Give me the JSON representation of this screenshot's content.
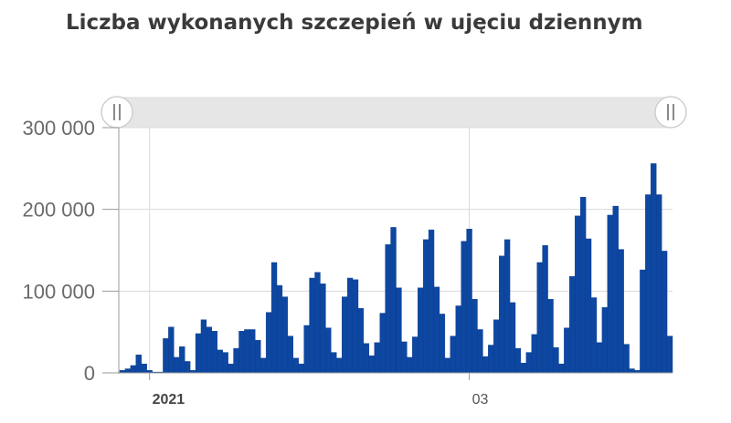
{
  "title": "Liczba wykonanych szczepień w ujęciu dziennym",
  "colors": {
    "bar": "#0d47a1",
    "bar_stroke": "#0a3b8a",
    "grid": "#d9d9d9",
    "axis": "#9a9a9a",
    "navigator": "#e6e6e6"
  },
  "navigator": {
    "left_handle_icon": "grip-lines-icon",
    "right_handle_icon": "grip-lines-icon"
  },
  "chart_data": {
    "type": "bar",
    "title": "Liczba wykonanych szczepień w ujęciu dziennym",
    "xlabel": "",
    "ylabel": "",
    "ylim": [
      0,
      300000
    ],
    "yticks": [
      0,
      100000,
      200000,
      300000
    ],
    "ytick_labels": [
      "0",
      "100 000",
      "200 000",
      "300 000"
    ],
    "xtick_labels": [
      {
        "label": "2021",
        "bold": true,
        "day_index": 5
      },
      {
        "label": "03",
        "bold": false,
        "day_index": 64
      }
    ],
    "grid": true,
    "values": [
      3000,
      5000,
      9000,
      22000,
      11000,
      3000,
      1000,
      1000,
      42000,
      56000,
      19000,
      32000,
      14000,
      3000,
      48000,
      65000,
      56000,
      51000,
      28000,
      25000,
      11000,
      30000,
      51000,
      53000,
      53000,
      40000,
      18000,
      74000,
      135000,
      107000,
      93000,
      45000,
      18000,
      11000,
      58000,
      116000,
      123000,
      109000,
      55000,
      25000,
      18000,
      93000,
      116000,
      114000,
      79000,
      36000,
      21000,
      37000,
      73000,
      157000,
      178000,
      104000,
      38000,
      19000,
      44000,
      104000,
      163000,
      175000,
      105000,
      72000,
      18000,
      45000,
      82000,
      161000,
      176000,
      90000,
      53000,
      20000,
      34000,
      65000,
      143000,
      163000,
      86000,
      30000,
      12000,
      25000,
      47000,
      135000,
      156000,
      90000,
      31000,
      11000,
      55000,
      118000,
      192000,
      215000,
      164000,
      92000,
      37000,
      80000,
      193000,
      204000,
      151000,
      35000,
      5000,
      3000,
      126000,
      218000,
      256000,
      218000,
      149000,
      45000
    ]
  }
}
